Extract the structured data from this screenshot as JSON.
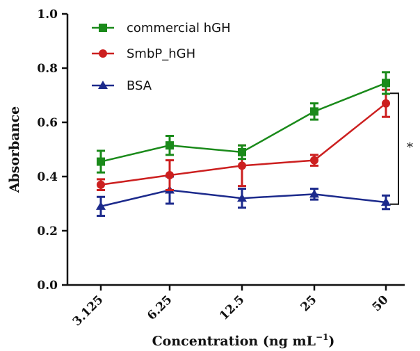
{
  "chart_data": {
    "type": "line",
    "xlabel_main": "Concentration (ng mL",
    "xlabel_sup": "−1",
    "xlabel_close": ")",
    "ylabel": "Absorbance",
    "ylim": [
      0.0,
      1.0
    ],
    "yticks": [
      "0.0",
      "0.2",
      "0.4",
      "0.6",
      "0.8",
      "1.0"
    ],
    "categories": [
      "3.125",
      "6.25",
      "12.5",
      "25",
      "50"
    ],
    "series": [
      {
        "name": "commercial hGH",
        "color": "#1a8a1a",
        "marker": "square",
        "values": [
          0.455,
          0.515,
          0.49,
          0.64,
          0.745
        ],
        "errors": [
          0.04,
          0.035,
          0.025,
          0.03,
          0.04
        ]
      },
      {
        "name": "SmbP_hGH",
        "color": "#cc1f1f",
        "marker": "circle",
        "values": [
          0.37,
          0.405,
          0.44,
          0.46,
          0.67
        ],
        "errors": [
          0.02,
          0.055,
          0.075,
          0.02,
          0.05
        ]
      },
      {
        "name": "BSA",
        "color": "#1c2a8c",
        "marker": "triangle",
        "values": [
          0.29,
          0.35,
          0.32,
          0.335,
          0.305
        ],
        "errors": [
          0.035,
          0.05,
          0.035,
          0.02,
          0.025
        ]
      }
    ],
    "annotation": "*",
    "grid": false,
    "legend_position": "top-left"
  }
}
